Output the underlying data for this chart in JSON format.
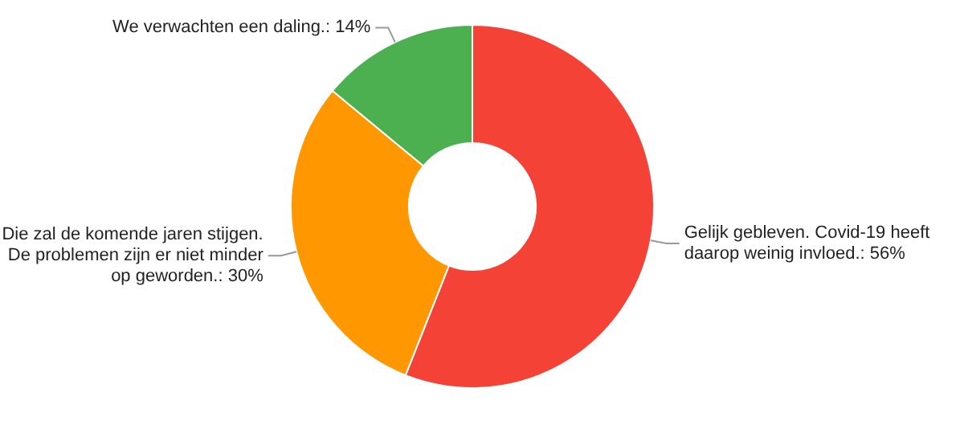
{
  "chart_data": {
    "type": "donut",
    "categories": [
      "Gelijk gebleven. Covid-19 heeft daarop weinig invloed.",
      "Die zal de komende jaren stijgen. De problemen zijn er niet minder op geworden.",
      "We verwachten een daling."
    ],
    "values": [
      56,
      30,
      14
    ],
    "value_labels": [
      "56%",
      "30%",
      "14%"
    ],
    "colors": [
      "#f44336",
      "#ff9800",
      "#4caf50"
    ]
  }
}
